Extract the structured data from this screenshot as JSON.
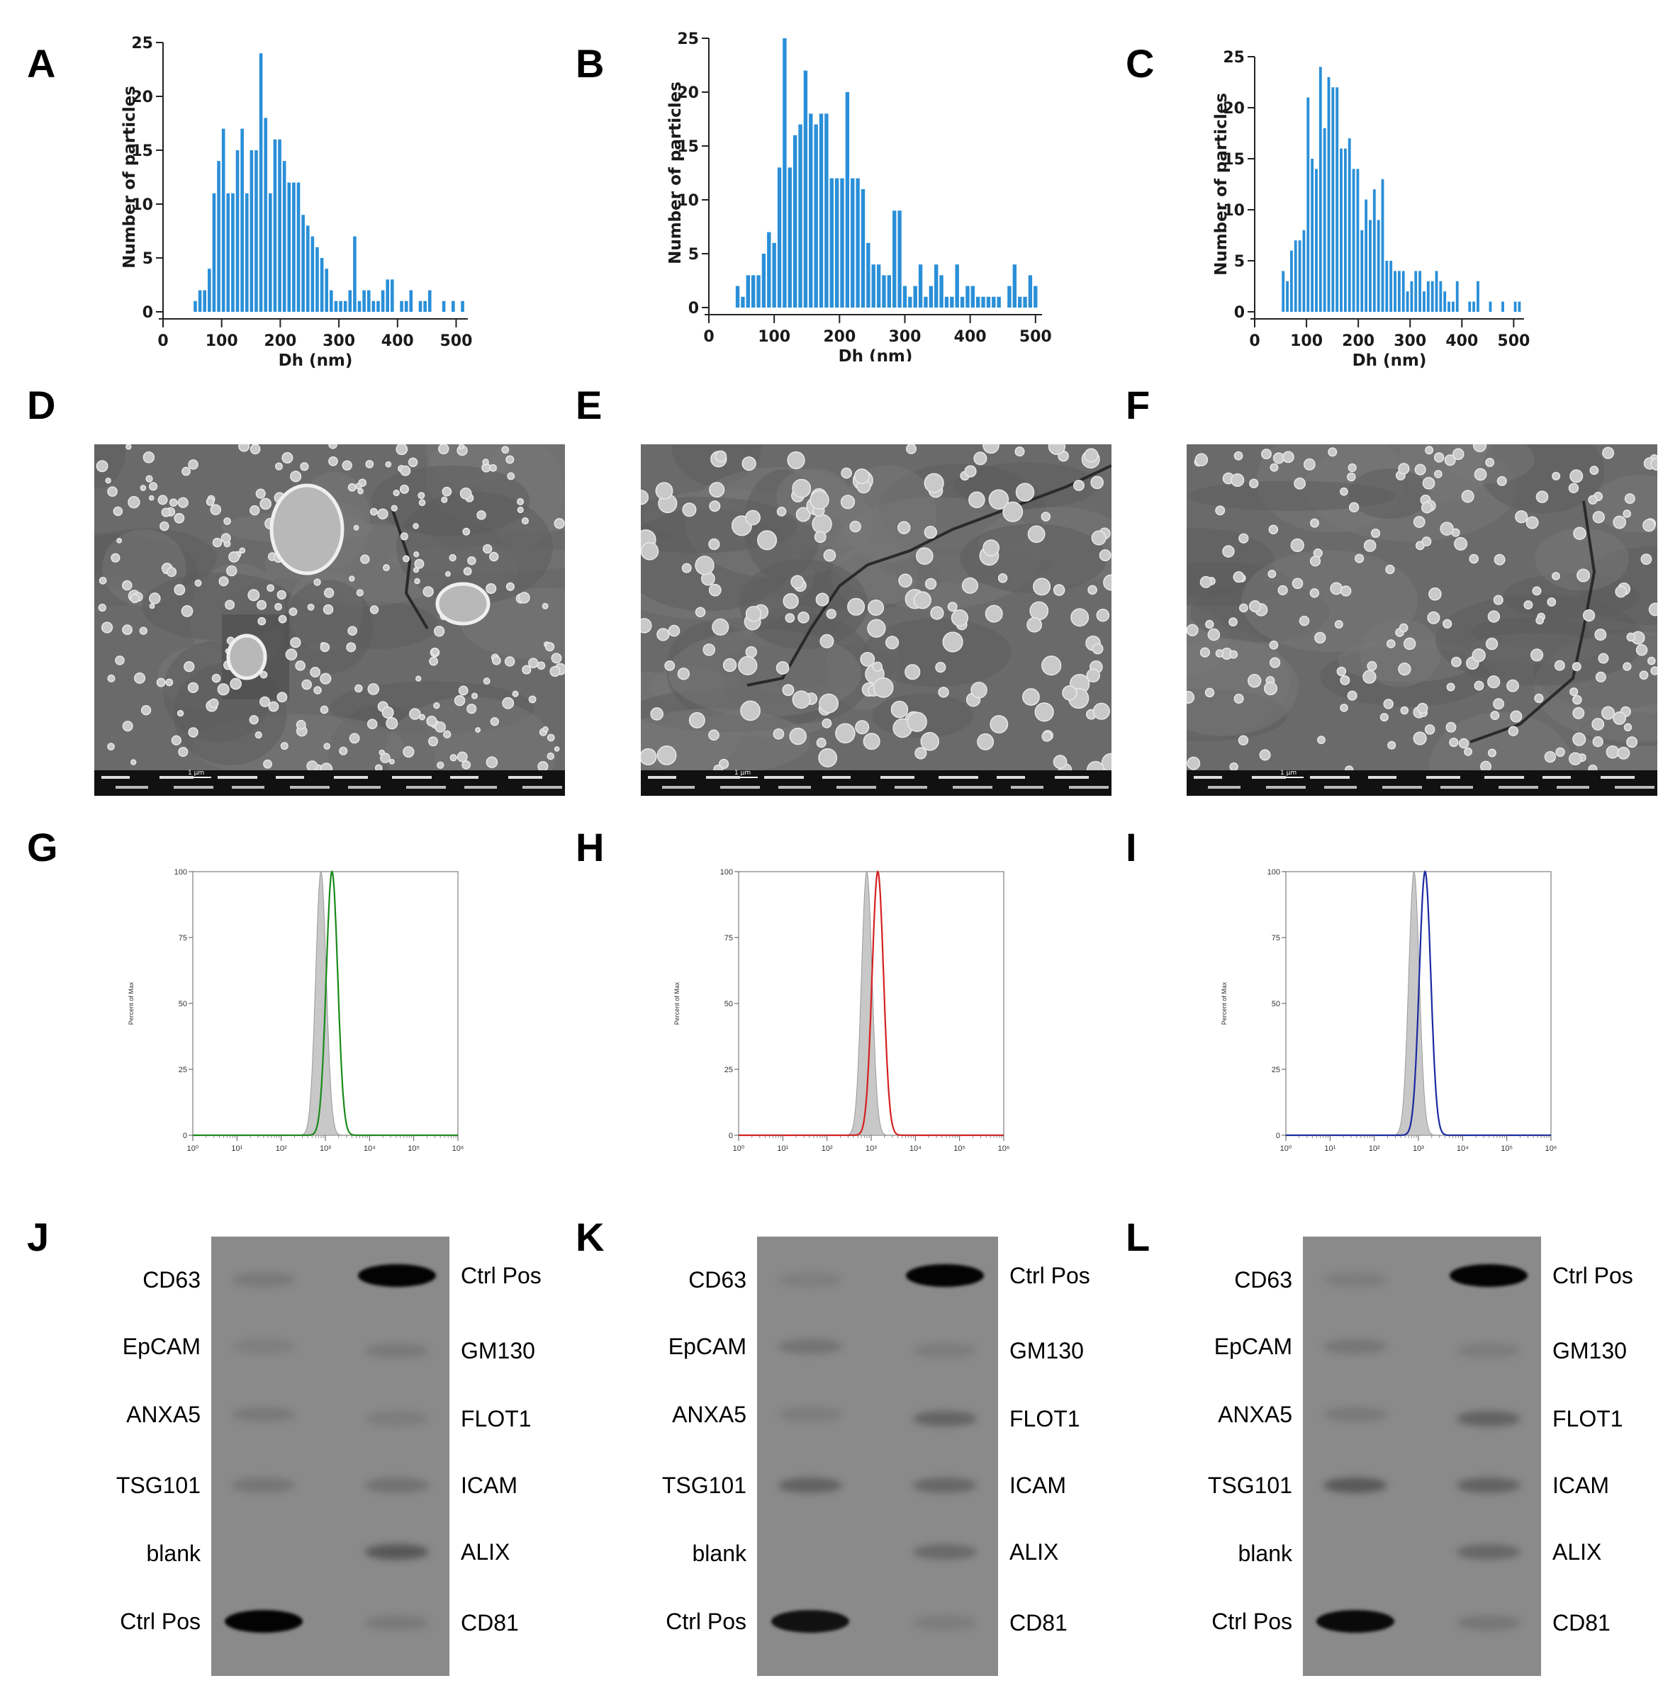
{
  "panels": {
    "A": "A",
    "B": "B",
    "C": "C",
    "D": "D",
    "E": "E",
    "F": "F",
    "G": "G",
    "H": "H",
    "I": "I",
    "J": "J",
    "K": "K",
    "L": "L"
  },
  "chart_data": [
    {
      "panel": "A",
      "type": "bar",
      "xlabel": "Dh (nm)",
      "ylabel": "Number of particles",
      "xlim": [
        0,
        520
      ],
      "ylim": [
        0,
        25
      ],
      "xticks": [
        "0",
        "100",
        "200",
        "300",
        "400",
        "500"
      ],
      "yticks": [
        "0",
        "5",
        "10",
        "15",
        "20",
        "25"
      ],
      "color": "#2a8fd8",
      "bin_width": 8,
      "x": [
        55,
        63,
        71,
        79,
        87,
        95,
        103,
        111,
        119,
        127,
        135,
        143,
        151,
        159,
        167,
        175,
        183,
        191,
        199,
        207,
        215,
        223,
        231,
        239,
        247,
        255,
        263,
        271,
        279,
        287,
        295,
        303,
        311,
        319,
        327,
        335,
        343,
        351,
        359,
        367,
        375,
        383,
        391,
        399,
        407,
        415,
        423,
        431,
        439,
        447,
        455,
        463,
        471,
        479,
        487,
        495,
        503,
        511
      ],
      "values": [
        1,
        2,
        2,
        4,
        11,
        14,
        17,
        11,
        11,
        15,
        17,
        11,
        15,
        15,
        24,
        18,
        11,
        16,
        16,
        14,
        12,
        12,
        12,
        9,
        8,
        7,
        6,
        5,
        4,
        2,
        1,
        1,
        1,
        2,
        7,
        1,
        2,
        2,
        1,
        1,
        2,
        3,
        3,
        0,
        1,
        1,
        2,
        0,
        1,
        1,
        2,
        0,
        0,
        1,
        0,
        1,
        0,
        1
      ]
    },
    {
      "panel": "B",
      "type": "bar",
      "xlabel": "Dh (nm)",
      "ylabel": "Number of particles",
      "xlim": [
        0,
        510
      ],
      "ylim": [
        0,
        25
      ],
      "xticks": [
        "0",
        "100",
        "200",
        "300",
        "400",
        "500"
      ],
      "yticks": [
        "0",
        "5",
        "10",
        "15",
        "20",
        "25"
      ],
      "color": "#2a8fd8",
      "bin_width": 8,
      "x": [
        44,
        52,
        60,
        68,
        76,
        84,
        92,
        100,
        108,
        116,
        124,
        132,
        140,
        148,
        156,
        164,
        172,
        180,
        188,
        196,
        204,
        212,
        220,
        228,
        236,
        244,
        252,
        260,
        268,
        276,
        284,
        292,
        300,
        308,
        316,
        324,
        332,
        340,
        348,
        356,
        364,
        372,
        380,
        388,
        396,
        404,
        412,
        420,
        428,
        436,
        444,
        452,
        460,
        468,
        476,
        484,
        492,
        500
      ],
      "values": [
        2,
        1,
        3,
        3,
        3,
        5,
        7,
        6,
        13,
        25,
        13,
        16,
        17,
        22,
        18,
        17,
        18,
        18,
        12,
        12,
        12,
        20,
        12,
        12,
        11,
        6,
        4,
        4,
        3,
        3,
        9,
        9,
        2,
        1,
        2,
        4,
        1,
        2,
        4,
        3,
        1,
        1,
        4,
        1,
        2,
        2,
        1,
        1,
        1,
        1,
        1,
        0,
        2,
        4,
        1,
        1,
        3,
        2
      ]
    },
    {
      "panel": "C",
      "type": "bar",
      "xlabel": "Dh (nm)",
      "ylabel": "Number of particles",
      "xlim": [
        0,
        520
      ],
      "ylim": [
        0,
        25
      ],
      "xticks": [
        "0",
        "100",
        "200",
        "300",
        "400",
        "500"
      ],
      "yticks": [
        "0",
        "5",
        "10",
        "15",
        "20",
        "25"
      ],
      "color": "#2a8fd8",
      "bin_width": 8,
      "x": [
        55,
        63,
        71,
        79,
        87,
        95,
        103,
        111,
        119,
        127,
        135,
        143,
        151,
        159,
        167,
        175,
        183,
        191,
        199,
        207,
        215,
        223,
        231,
        239,
        247,
        255,
        263,
        271,
        279,
        287,
        295,
        303,
        311,
        319,
        327,
        335,
        343,
        351,
        359,
        367,
        375,
        383,
        391,
        399,
        407,
        415,
        423,
        431,
        439,
        447,
        455,
        463,
        471,
        479,
        487,
        495,
        503,
        511
      ],
      "values": [
        4,
        3,
        6,
        7,
        7,
        8,
        21,
        15,
        14,
        24,
        18,
        23,
        22,
        22,
        16,
        16,
        17,
        14,
        14,
        8,
        11,
        9,
        12,
        9,
        13,
        5,
        5,
        4,
        4,
        4,
        2,
        3,
        4,
        4,
        2,
        3,
        3,
        4,
        3,
        2,
        1,
        1,
        3,
        0,
        0,
        1,
        1,
        3,
        0,
        0,
        1,
        0,
        0,
        1,
        0,
        0,
        1,
        1
      ]
    },
    {
      "panel": "G",
      "type": "area",
      "ylabel": "Percent of Max",
      "yticks": [
        "100",
        "75",
        "50",
        "25",
        "0"
      ],
      "ylim": [
        0,
        100
      ],
      "xscale": "log",
      "xlim": [
        1,
        1000000
      ],
      "xticks": [
        "10⁰",
        "10¹",
        "10²",
        "10³",
        "10⁴",
        "10⁵",
        "10⁶"
      ],
      "series": [
        {
          "fill": "#c8c8c8",
          "peak_log10": 2.9,
          "width": 0.12
        },
        {
          "stroke": "#1a8a1a",
          "peak_log10": 3.15,
          "width": 0.13
        }
      ]
    },
    {
      "panel": "H",
      "type": "area",
      "ylabel": "Percent of Max",
      "yticks": [
        "100",
        "75",
        "50",
        "25",
        "0"
      ],
      "ylim": [
        0,
        100
      ],
      "xscale": "log",
      "xlim": [
        1,
        1000000
      ],
      "xticks": [
        "10⁰",
        "10¹",
        "10²",
        "10³",
        "10⁴",
        "10⁵",
        "10⁶"
      ],
      "series": [
        {
          "fill": "#c8c8c8",
          "peak_log10": 2.9,
          "width": 0.12
        },
        {
          "stroke": "#d42020",
          "peak_log10": 3.15,
          "width": 0.13
        }
      ]
    },
    {
      "panel": "I",
      "type": "area",
      "ylabel": "Percent of Max",
      "yticks": [
        "100",
        "75",
        "50",
        "25",
        "0"
      ],
      "ylim": [
        0,
        100
      ],
      "xscale": "log",
      "xlim": [
        1,
        1000000
      ],
      "xticks": [
        "10⁰",
        "10¹",
        "10²",
        "10³",
        "10⁴",
        "10⁵",
        "10⁶"
      ],
      "series": [
        {
          "fill": "#c8c8c8",
          "peak_log10": 2.9,
          "width": 0.12
        },
        {
          "stroke": "#1a2aa0",
          "peak_log10": 3.15,
          "width": 0.13
        }
      ]
    }
  ],
  "blots": [
    {
      "panel": "J",
      "left_labels": [
        "CD63",
        "EpCAM",
        "ANXA5",
        "TSG101",
        "blank",
        "Ctrl Pos"
      ],
      "right_labels": [
        "Ctrl Pos",
        "GM130",
        "FLOT1",
        "ICAM",
        "ALIX",
        "CD81"
      ],
      "left_intensity": [
        0.12,
        0.08,
        0.12,
        0.15,
        0.0,
        1.0
      ],
      "right_intensity": [
        1.0,
        0.12,
        0.1,
        0.18,
        0.38,
        0.12
      ]
    },
    {
      "panel": "K",
      "left_labels": [
        "CD63",
        "EpCAM",
        "ANXA5",
        "TSG101",
        "blank",
        "Ctrl Pos"
      ],
      "right_labels": [
        "Ctrl Pos",
        "GM130",
        "FLOT1",
        "ICAM",
        "ALIX",
        "CD81"
      ],
      "left_intensity": [
        0.08,
        0.16,
        0.1,
        0.3,
        0.0,
        0.9
      ],
      "right_intensity": [
        1.0,
        0.1,
        0.28,
        0.26,
        0.24,
        0.1
      ]
    },
    {
      "panel": "L",
      "left_labels": [
        "CD63",
        "EpCAM",
        "ANXA5",
        "TSG101",
        "blank",
        "Ctrl Pos"
      ],
      "right_labels": [
        "Ctrl Pos",
        "GM130",
        "FLOT1",
        "ICAM",
        "ALIX",
        "CD81"
      ],
      "left_intensity": [
        0.1,
        0.14,
        0.12,
        0.36,
        0.0,
        0.95
      ],
      "right_intensity": [
        1.0,
        0.1,
        0.3,
        0.3,
        0.26,
        0.14
      ]
    }
  ],
  "sem_images": [
    {
      "panel": "D",
      "kind": "scanning-electron-micrograph",
      "scale_bar": "1 µm"
    },
    {
      "panel": "E",
      "kind": "scanning-electron-micrograph",
      "scale_bar": "1 µm"
    },
    {
      "panel": "F",
      "kind": "scanning-electron-micrograph",
      "scale_bar": "1 µm"
    }
  ]
}
